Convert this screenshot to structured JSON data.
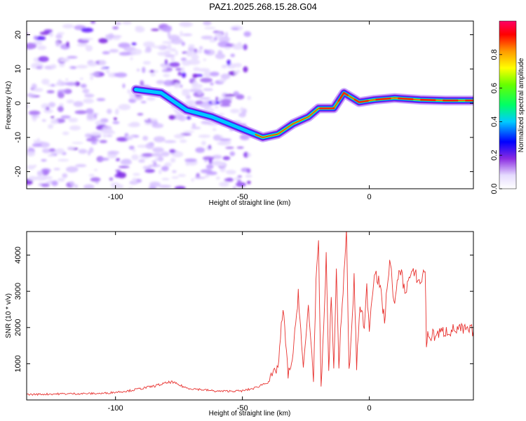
{
  "title": "PAZ1.2025.268.15.28.G04",
  "chart_data": [
    {
      "type": "heatmap",
      "name": "spectrogram",
      "xlabel": "Height of straight line (km)",
      "ylabel": "Frequency (Hz)",
      "xlim": [
        -135,
        41
      ],
      "ylim": [
        -25,
        24
      ],
      "xticks": [
        -100,
        -50,
        0
      ],
      "yticks": [
        -20,
        -10,
        0,
        10,
        20
      ],
      "xtick_labels": [
        "-100",
        "-50",
        "0"
      ],
      "ytick_labels": [
        "-20",
        "-10",
        "0",
        "10",
        "20"
      ],
      "ridge": {
        "x": [
          -92,
          -82,
          -72,
          -62,
          -52,
          -42,
          -36,
          -30,
          -24,
          -20,
          -14,
          -10,
          -4,
          2,
          10,
          20,
          30,
          41
        ],
        "y": [
          4,
          3,
          -2,
          -4,
          -7,
          -10,
          -9,
          -6,
          -4,
          -1.5,
          -1.5,
          3,
          0.3,
          1,
          1.5,
          1,
          0.8,
          0.8
        ]
      },
      "colorbar": {
        "label": "Normalized spectral amplitude",
        "range": [
          0,
          1
        ],
        "ticks": [
          0.0,
          0.2,
          0.4,
          0.6,
          0.8
        ],
        "tick_labels": [
          "0.0",
          "0.2",
          "0.4",
          "0.6",
          "0.8"
        ]
      }
    },
    {
      "type": "line",
      "name": "snr",
      "xlabel": "Height of straight line (km)",
      "ylabel": "SNR (10 * v/v)",
      "xlim": [
        -135,
        41
      ],
      "ylim": [
        0,
        4650
      ],
      "xticks": [
        -100,
        -50,
        0
      ],
      "yticks": [
        1000,
        2000,
        3000,
        4000
      ],
      "xtick_labels": [
        "-100",
        "-50",
        "0"
      ],
      "ytick_labels": [
        "1000",
        "2000",
        "3000",
        "4000"
      ],
      "color": "#e8322f",
      "series": [
        {
          "name": "SNR",
          "x": [
            -135,
            -120,
            -105,
            -95,
            -85,
            -78,
            -72,
            -60,
            -50,
            -45,
            -40,
            -36,
            -34,
            -32,
            -30,
            -28,
            -26,
            -24,
            -22,
            -21,
            -20,
            -19,
            -18,
            -17,
            -16,
            -15,
            -14,
            -13,
            -12,
            -11,
            -10,
            -9,
            -8,
            -7,
            -6,
            -5,
            -4,
            -3,
            -2,
            -1,
            0,
            2,
            4,
            6,
            8,
            10,
            12,
            14,
            16,
            18,
            20,
            22,
            22.5,
            23,
            26,
            30,
            35,
            41
          ],
          "y": [
            150,
            170,
            180,
            250,
            380,
            500,
            330,
            240,
            250,
            330,
            500,
            900,
            2500,
            700,
            1200,
            3000,
            800,
            2600,
            600,
            3200,
            4250,
            300,
            2000,
            3900,
            900,
            2800,
            900,
            3500,
            1000,
            2200,
            3500,
            4650,
            800,
            1800,
            3400,
            900,
            2300,
            2600,
            1900,
            3100,
            2000,
            3600,
            3200,
            2200,
            3900,
            2600,
            3700,
            3000,
            3400,
            3500,
            3200,
            3650,
            1550,
            1750,
            1800,
            1900,
            1950,
            1900
          ]
        }
      ]
    }
  ]
}
